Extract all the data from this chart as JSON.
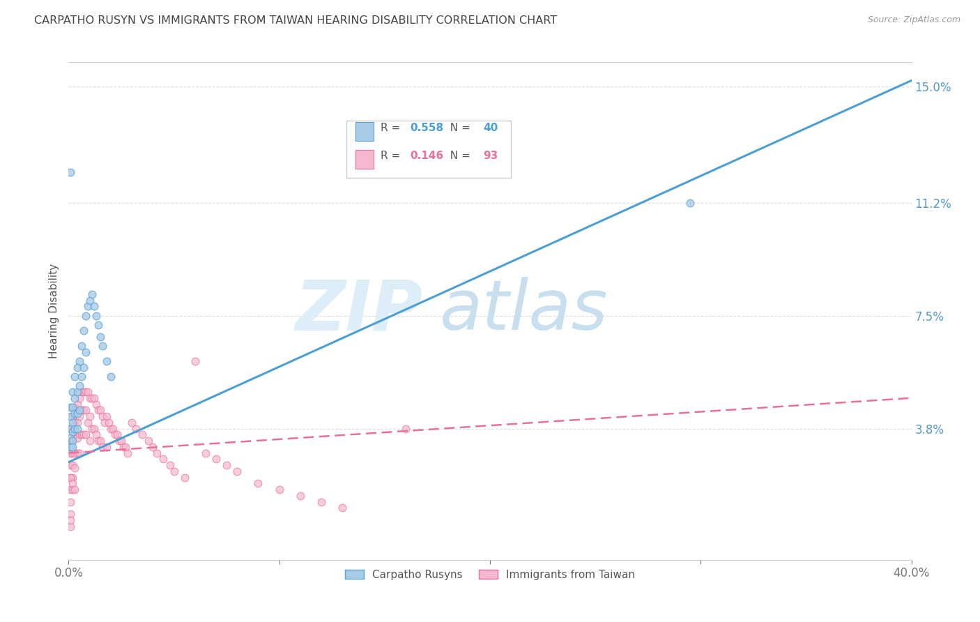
{
  "title": "CARPATHO RUSYN VS IMMIGRANTS FROM TAIWAN HEARING DISABILITY CORRELATION CHART",
  "source": "Source: ZipAtlas.com",
  "ylabel": "Hearing Disability",
  "xlim": [
    0.0,
    0.4
  ],
  "ylim": [
    -0.005,
    0.158
  ],
  "xticks": [
    0.0,
    0.1,
    0.2,
    0.3,
    0.4
  ],
  "xtick_labels": [
    "0.0%",
    "",
    "",
    "",
    "40.0%"
  ],
  "yticks": [
    0.038,
    0.075,
    0.112,
    0.15
  ],
  "ytick_labels": [
    "3.8%",
    "7.5%",
    "11.2%",
    "15.0%"
  ],
  "blue_R": 0.558,
  "blue_N": 40,
  "pink_R": 0.146,
  "pink_N": 93,
  "blue_color": "#a8cce8",
  "pink_color": "#f5b8d0",
  "blue_edge_color": "#5b9fd4",
  "pink_edge_color": "#e8709a",
  "blue_line_color": "#4a9fd4",
  "pink_line_color": "#e8709a",
  "right_axis_color": "#5599cc",
  "watermark_color": "#ddeef8",
  "legend_label_blue": "Carpatho Rusyns",
  "legend_label_pink": "Immigrants from Taiwan",
  "blue_line_x0": 0.0,
  "blue_line_y0": 0.027,
  "blue_line_x1": 0.4,
  "blue_line_y1": 0.152,
  "pink_line_x0": 0.0,
  "pink_line_y0": 0.03,
  "pink_line_x1": 0.4,
  "pink_line_y1": 0.048,
  "blue_scatter_x": [
    0.001,
    0.001,
    0.001,
    0.001,
    0.001,
    0.002,
    0.002,
    0.002,
    0.002,
    0.002,
    0.002,
    0.003,
    0.003,
    0.003,
    0.003,
    0.004,
    0.004,
    0.004,
    0.004,
    0.005,
    0.005,
    0.005,
    0.006,
    0.006,
    0.007,
    0.007,
    0.008,
    0.008,
    0.009,
    0.01,
    0.011,
    0.012,
    0.013,
    0.014,
    0.015,
    0.016,
    0.018,
    0.02,
    0.295,
    0.001
  ],
  "blue_scatter_y": [
    0.045,
    0.042,
    0.038,
    0.035,
    0.032,
    0.05,
    0.045,
    0.04,
    0.037,
    0.034,
    0.032,
    0.055,
    0.048,
    0.043,
    0.038,
    0.058,
    0.05,
    0.043,
    0.038,
    0.06,
    0.052,
    0.044,
    0.065,
    0.055,
    0.07,
    0.058,
    0.075,
    0.063,
    0.078,
    0.08,
    0.082,
    0.078,
    0.075,
    0.072,
    0.068,
    0.065,
    0.06,
    0.055,
    0.112,
    0.122
  ],
  "pink_scatter_x": [
    0.001,
    0.001,
    0.001,
    0.001,
    0.001,
    0.001,
    0.001,
    0.001,
    0.001,
    0.002,
    0.002,
    0.002,
    0.002,
    0.002,
    0.002,
    0.002,
    0.003,
    0.003,
    0.003,
    0.003,
    0.003,
    0.004,
    0.004,
    0.004,
    0.004,
    0.005,
    0.005,
    0.005,
    0.005,
    0.006,
    0.006,
    0.006,
    0.007,
    0.007,
    0.007,
    0.008,
    0.008,
    0.008,
    0.009,
    0.009,
    0.01,
    0.01,
    0.01,
    0.011,
    0.011,
    0.012,
    0.012,
    0.013,
    0.013,
    0.014,
    0.014,
    0.015,
    0.015,
    0.016,
    0.016,
    0.017,
    0.018,
    0.018,
    0.019,
    0.02,
    0.021,
    0.022,
    0.023,
    0.024,
    0.025,
    0.026,
    0.027,
    0.028,
    0.03,
    0.032,
    0.035,
    0.038,
    0.04,
    0.042,
    0.045,
    0.048,
    0.05,
    0.055,
    0.06,
    0.065,
    0.07,
    0.075,
    0.08,
    0.09,
    0.1,
    0.11,
    0.12,
    0.13,
    0.001,
    0.002,
    0.003,
    0.16,
    0.001
  ],
  "pink_scatter_y": [
    0.038,
    0.034,
    0.03,
    0.026,
    0.022,
    0.018,
    0.014,
    0.01,
    0.006,
    0.042,
    0.038,
    0.034,
    0.03,
    0.026,
    0.022,
    0.018,
    0.045,
    0.04,
    0.036,
    0.03,
    0.025,
    0.046,
    0.04,
    0.035,
    0.03,
    0.048,
    0.042,
    0.036,
    0.03,
    0.05,
    0.044,
    0.036,
    0.05,
    0.044,
    0.036,
    0.05,
    0.044,
    0.036,
    0.05,
    0.04,
    0.048,
    0.042,
    0.034,
    0.048,
    0.038,
    0.048,
    0.038,
    0.046,
    0.036,
    0.044,
    0.034,
    0.044,
    0.034,
    0.042,
    0.032,
    0.04,
    0.042,
    0.032,
    0.04,
    0.038,
    0.038,
    0.036,
    0.036,
    0.034,
    0.034,
    0.032,
    0.032,
    0.03,
    0.04,
    0.038,
    0.036,
    0.034,
    0.032,
    0.03,
    0.028,
    0.026,
    0.024,
    0.022,
    0.06,
    0.03,
    0.028,
    0.026,
    0.024,
    0.02,
    0.018,
    0.016,
    0.014,
    0.012,
    0.022,
    0.02,
    0.018,
    0.038,
    0.008
  ]
}
